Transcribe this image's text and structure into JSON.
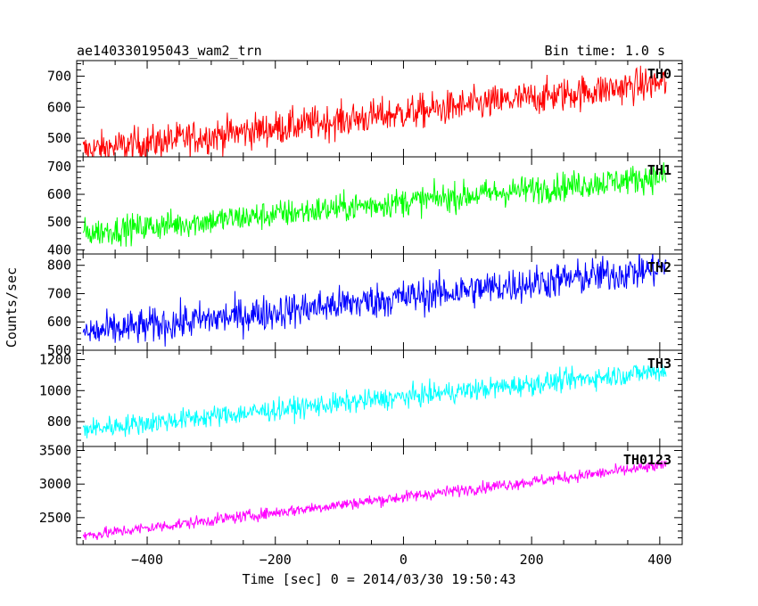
{
  "header": {
    "left_title": "ae140330195043_wam2_trn",
    "right_title": "Bin time: 1.0 s"
  },
  "chart_data": {
    "type": "line",
    "title": "ae140330195043_wam2_trn",
    "subtitle": "Bin time: 1.0 s",
    "xlabel": "Time [sec] 0 = 2014/03/30 19:50:43",
    "ylabel": "Counts/sec",
    "xlim": [
      -510,
      435
    ],
    "x_range": [
      -500,
      410
    ],
    "x_step": 1.0,
    "xticks": [
      -400,
      -200,
      0,
      200,
      400
    ],
    "x_tick_labels": [
      "−400",
      "−200",
      "0",
      "200",
      "400"
    ],
    "grid": false,
    "legend": "in-panel label, top-right",
    "panels": [
      {
        "name": "TH0",
        "color": "#ff0000",
        "ylim": [
          440,
          750
        ],
        "yticks": [
          500,
          600,
          700
        ],
        "trend_start": 460,
        "trend_end": 680,
        "noise": 28
      },
      {
        "name": "TH1",
        "color": "#00ff00",
        "ylim": [
          385,
          735
        ],
        "yticks": [
          400,
          500,
          600,
          700
        ],
        "trend_start": 460,
        "trend_end": 665,
        "noise": 26
      },
      {
        "name": "TH2",
        "color": "#0000ff",
        "ylim": [
          500,
          840
        ],
        "yticks": [
          500,
          600,
          700,
          800
        ],
        "trend_start": 560,
        "trend_end": 790,
        "noise": 32
      },
      {
        "name": "TH3",
        "color": "#00ffff",
        "ylim": [
          640,
          1260
        ],
        "yticks": [
          800,
          1000,
          1200
        ],
        "trend_start": 750,
        "trend_end": 1130,
        "noise": 35
      },
      {
        "name": "TH0123",
        "color": "#ff00ff",
        "ylim": [
          2100,
          3560
        ],
        "yticks": [
          2500,
          3000,
          3500
        ],
        "trend_start": 2230,
        "trend_end": 3280,
        "noise": 45
      }
    ]
  }
}
